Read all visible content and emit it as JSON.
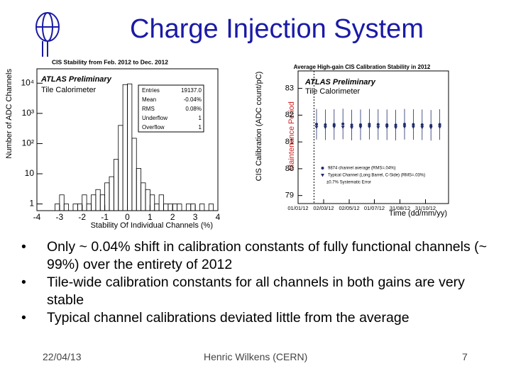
{
  "title": "Charge Injection System",
  "bullets": [
    "Only ~ 0.04% shift in calibration constants of fully functional channels (~ 99%) over the entirety of 2012",
    "Tile-wide calibration constants for all channels in both gains are very stable",
    "Typical channel calibrations deviated little from the average"
  ],
  "footer": {
    "date": "22/04/13",
    "author": "Henric Wilkens (CERN)",
    "page": "7"
  },
  "chart_data": [
    {
      "type": "histogram",
      "title": "CIS Stability from Feb. 2012 to Dec. 2012",
      "annotations": [
        "ATLAS Preliminary",
        "Tile Calorimeter"
      ],
      "stats": [
        {
          "label": "Entries",
          "value": "19137.0"
        },
        {
          "label": "Mean",
          "value": "-0.04%"
        },
        {
          "label": "RMS",
          "value": "0.08%"
        },
        {
          "label": "Underflow",
          "value": "1"
        },
        {
          "label": "Overflow",
          "value": "1"
        }
      ],
      "x_label": "Stability Of Individual Channels (%)",
      "y_label": "Number of ADC Channels",
      "bins": [
        -4,
        -3.8,
        -3.6,
        -3.4,
        -3.2,
        -3,
        -2.8,
        -2.6,
        -2.4,
        -2.2,
        -2,
        -1.8,
        -1.6,
        -1.4,
        -1.2,
        -1,
        -0.8,
        -0.6,
        -0.4,
        -0.2,
        0,
        0.2,
        0.4,
        0.6,
        0.8,
        1,
        1.2,
        1.4,
        1.6,
        1.8,
        2,
        2.2,
        2.4,
        2.6,
        2.8,
        3,
        3.2,
        3.4,
        3.6,
        3.8,
        4
      ],
      "values": [
        0,
        0,
        0,
        0,
        1,
        2,
        1,
        0,
        1,
        1,
        2,
        1,
        2,
        3,
        2,
        5,
        8,
        30,
        400,
        9000,
        9500,
        150,
        15,
        5,
        3,
        2,
        1,
        2,
        1,
        1,
        1,
        1,
        0,
        1,
        1,
        0,
        1,
        0,
        1,
        0
      ],
      "color": "#000000",
      "log_y": true,
      "xlim": [
        -4,
        4
      ],
      "xticks": [
        -4,
        -3,
        -2,
        -1,
        0,
        1,
        2,
        3,
        4
      ],
      "ylim": [
        0.6,
        30000
      ],
      "yticks": [
        1,
        10,
        {
          "value": 100,
          "label": "10²"
        },
        {
          "value": 1000,
          "label": "10³"
        },
        {
          "value": 10000,
          "label": "10⁴"
        }
      ]
    },
    {
      "type": "scatter",
      "title": "Average High-gain CIS Calibration Stability in 2012",
      "annotations": [
        "ATLAS Preliminary",
        "Tile Calorimeter",
        "Maintenance Period",
        "±0.7% Systematic Error"
      ],
      "annotation_line": "08/02/12",
      "x_label": "Time (dd/mm/yy)",
      "y_label": "CIS Calibration (ADC count/pC)",
      "x": [
        "14/02/12",
        "06/03/12",
        "27/03/12",
        "17/04/12",
        "08/05/12",
        "29/05/12",
        "19/06/12",
        "10/07/12",
        "31/07/12",
        "21/08/12",
        "11/09/12",
        "02/10/12",
        "23/10/12",
        "13/11/12",
        "04/12/12"
      ],
      "series": [
        {
          "name": "9874 channel average (RMS=.04%)",
          "color": "#1f2a6b",
          "marker": "circle",
          "values": [
            81.66,
            81.64,
            81.65,
            81.67,
            81.63,
            81.64,
            81.66,
            81.65,
            81.64,
            81.63,
            81.66,
            81.65,
            81.64,
            81.62,
            81.65
          ],
          "errors": [
            0.57,
            0.57,
            0.57,
            0.57,
            0.57,
            0.57,
            0.57,
            0.57,
            0.57,
            0.57,
            0.57,
            0.57,
            0.57,
            0.57,
            0.57
          ]
        },
        {
          "name": "Typical Channel (Long Barrel, C-Side) (RMS=.03%)",
          "color": "#1f2a6b",
          "marker": "triangle",
          "values": [
            81.55,
            81.54,
            81.56,
            81.55,
            81.53,
            81.55,
            81.56,
            81.54,
            81.55,
            81.53,
            81.56,
            81.55,
            81.54,
            81.53,
            81.55
          ]
        }
      ],
      "xlim": [
        "01/01/12",
        "25/12/12"
      ],
      "xticks": [
        "01/01/12",
        "02/03/12",
        "02/05/12",
        "01/07/12",
        "31/08/12",
        "31/10/12"
      ],
      "ylim": [
        78.7,
        83.65
      ],
      "yticks": [
        79,
        80,
        81,
        82,
        83
      ]
    }
  ]
}
